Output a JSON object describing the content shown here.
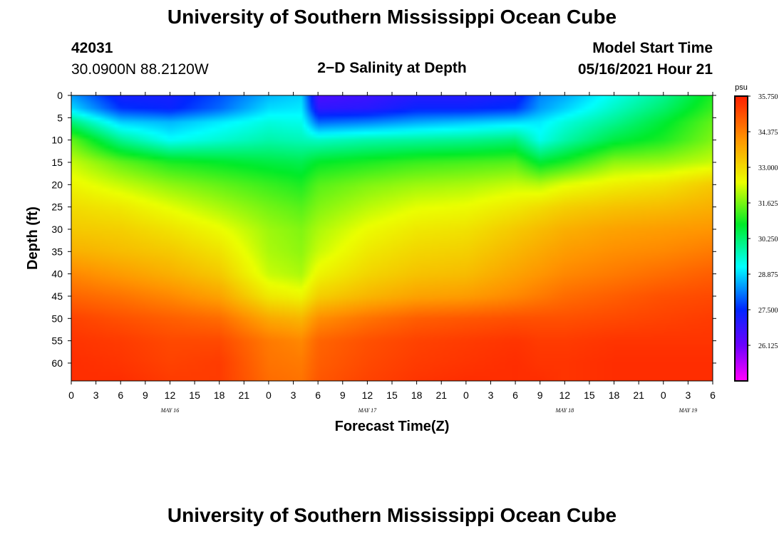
{
  "page": {
    "title_top": "University of Southern Mississippi Ocean Cube",
    "title_bottom": "University of Southern Mississippi Ocean Cube",
    "station_id": "42031",
    "station_coords": "30.0900N  88.2120W",
    "plot_title": "2−D Salinity at Depth",
    "model_start_label": "Model Start Time",
    "model_start_value": "05/16/2021 Hour 21"
  },
  "chart_data": {
    "type": "heatmap",
    "title": "2−D Salinity at Depth",
    "xlabel": "Forecast Time(Z)",
    "ylabel": "Depth (ft)",
    "x_tick_labels": [
      "0",
      "3",
      "6",
      "9",
      "12",
      "15",
      "18",
      "21",
      "0",
      "3",
      "6",
      "9",
      "12",
      "15",
      "18",
      "21",
      "0",
      "3",
      "6",
      "9",
      "12",
      "15",
      "18",
      "21",
      "0",
      "3",
      "6"
    ],
    "x_hours": [
      0,
      3,
      6,
      9,
      12,
      15,
      18,
      21,
      24,
      27,
      30,
      33,
      36,
      39,
      42,
      45,
      48,
      51,
      54,
      57,
      60,
      63,
      66,
      69,
      72,
      75,
      78
    ],
    "x_date_labels": [
      {
        "label": "MAY 16",
        "hour": 12
      },
      {
        "label": "MAY 17",
        "hour": 36
      },
      {
        "label": "MAY 18",
        "hour": 60
      },
      {
        "label": "MAY 19",
        "hour": 75
      }
    ],
    "xlim": [
      0,
      78
    ],
    "y_ticks": [
      0,
      5,
      10,
      15,
      20,
      25,
      30,
      35,
      40,
      45,
      50,
      55,
      60
    ],
    "ylim": [
      0,
      64
    ],
    "y_inverted": true,
    "colorbar": {
      "unit": "psu",
      "min": 24.75,
      "max": 35.75,
      "ticks": [
        "35.750",
        "34.375",
        "33.000",
        "31.625",
        "30.250",
        "28.875",
        "27.500",
        "26.125"
      ],
      "tick_values": [
        35.75,
        34.375,
        33.0,
        31.625,
        30.25,
        28.875,
        27.5,
        26.125
      ]
    },
    "depth_grid": [
      0,
      3,
      6,
      10,
      15,
      20,
      25,
      30,
      35,
      40,
      45,
      50,
      55,
      60,
      64
    ],
    "time_grid": [
      0,
      6,
      12,
      18,
      24,
      28,
      30,
      36,
      42,
      48,
      54,
      57,
      60,
      66,
      72,
      78
    ],
    "salinity": [
      [
        28.4,
        27.2,
        27.2,
        27.8,
        28.6,
        28.8,
        26.5,
        26.7,
        27.0,
        27.0,
        27.2,
        28.2,
        28.5,
        29.3,
        30.0,
        31.0
      ],
      [
        28.9,
        27.6,
        27.4,
        28.0,
        28.9,
        29.0,
        26.9,
        27.0,
        27.4,
        27.4,
        27.6,
        28.4,
        28.8,
        29.6,
        30.3,
        31.2
      ],
      [
        30.2,
        28.8,
        28.6,
        29.0,
        29.4,
        29.3,
        28.0,
        28.2,
        28.5,
        28.7,
        28.9,
        29.0,
        29.4,
        30.0,
        30.7,
        31.5
      ],
      [
        31.5,
        30.0,
        29.2,
        29.5,
        29.8,
        29.7,
        29.6,
        29.8,
        29.9,
        30.0,
        30.2,
        29.3,
        29.8,
        30.6,
        31.0,
        31.7
      ],
      [
        32.2,
        31.5,
        31.0,
        30.8,
        30.6,
        30.5,
        30.8,
        31.0,
        31.2,
        31.3,
        31.4,
        30.7,
        31.0,
        31.8,
        31.9,
        32.2
      ],
      [
        32.6,
        32.2,
        31.8,
        31.5,
        31.2,
        31.0,
        31.4,
        31.7,
        31.9,
        32.0,
        32.2,
        32.1,
        32.4,
        32.7,
        32.9,
        33.3
      ],
      [
        33.0,
        32.8,
        32.4,
        32.0,
        31.6,
        31.4,
        31.7,
        32.1,
        32.4,
        32.5,
        32.8,
        33.0,
        33.2,
        33.4,
        33.5,
        33.7
      ],
      [
        33.3,
        33.2,
        32.9,
        32.5,
        31.9,
        31.7,
        32.0,
        32.5,
        32.8,
        32.9,
        33.3,
        33.5,
        33.7,
        33.9,
        34.0,
        34.1
      ],
      [
        33.7,
        33.5,
        33.3,
        32.9,
        32.0,
        31.8,
        32.2,
        32.8,
        33.1,
        33.2,
        33.6,
        33.8,
        34.0,
        34.2,
        34.3,
        34.5
      ],
      [
        34.3,
        34.0,
        33.7,
        33.3,
        32.2,
        32.0,
        32.6,
        33.1,
        33.4,
        33.5,
        33.9,
        34.1,
        34.3,
        34.5,
        34.7,
        34.9
      ],
      [
        34.8,
        34.6,
        34.3,
        33.9,
        32.8,
        32.6,
        33.2,
        33.6,
        33.9,
        34.0,
        34.3,
        34.5,
        34.7,
        34.9,
        35.1,
        35.2
      ],
      [
        35.3,
        35.1,
        34.9,
        34.7,
        33.8,
        33.6,
        34.2,
        34.6,
        34.9,
        35.0,
        35.1,
        35.1,
        35.1,
        35.2,
        35.3,
        35.4
      ],
      [
        35.5,
        35.4,
        35.2,
        35.2,
        34.5,
        34.3,
        34.8,
        35.1,
        35.3,
        35.4,
        35.5,
        35.4,
        35.4,
        35.5,
        35.5,
        35.5
      ],
      [
        35.6,
        35.5,
        35.3,
        35.4,
        34.6,
        34.5,
        34.9,
        35.2,
        35.4,
        35.5,
        35.6,
        35.5,
        35.5,
        35.6,
        35.6,
        35.6
      ],
      [
        35.6,
        35.6,
        35.4,
        35.4,
        34.7,
        34.6,
        35.0,
        35.3,
        35.5,
        35.6,
        35.6,
        35.6,
        35.5,
        35.6,
        35.6,
        35.6
      ]
    ]
  }
}
